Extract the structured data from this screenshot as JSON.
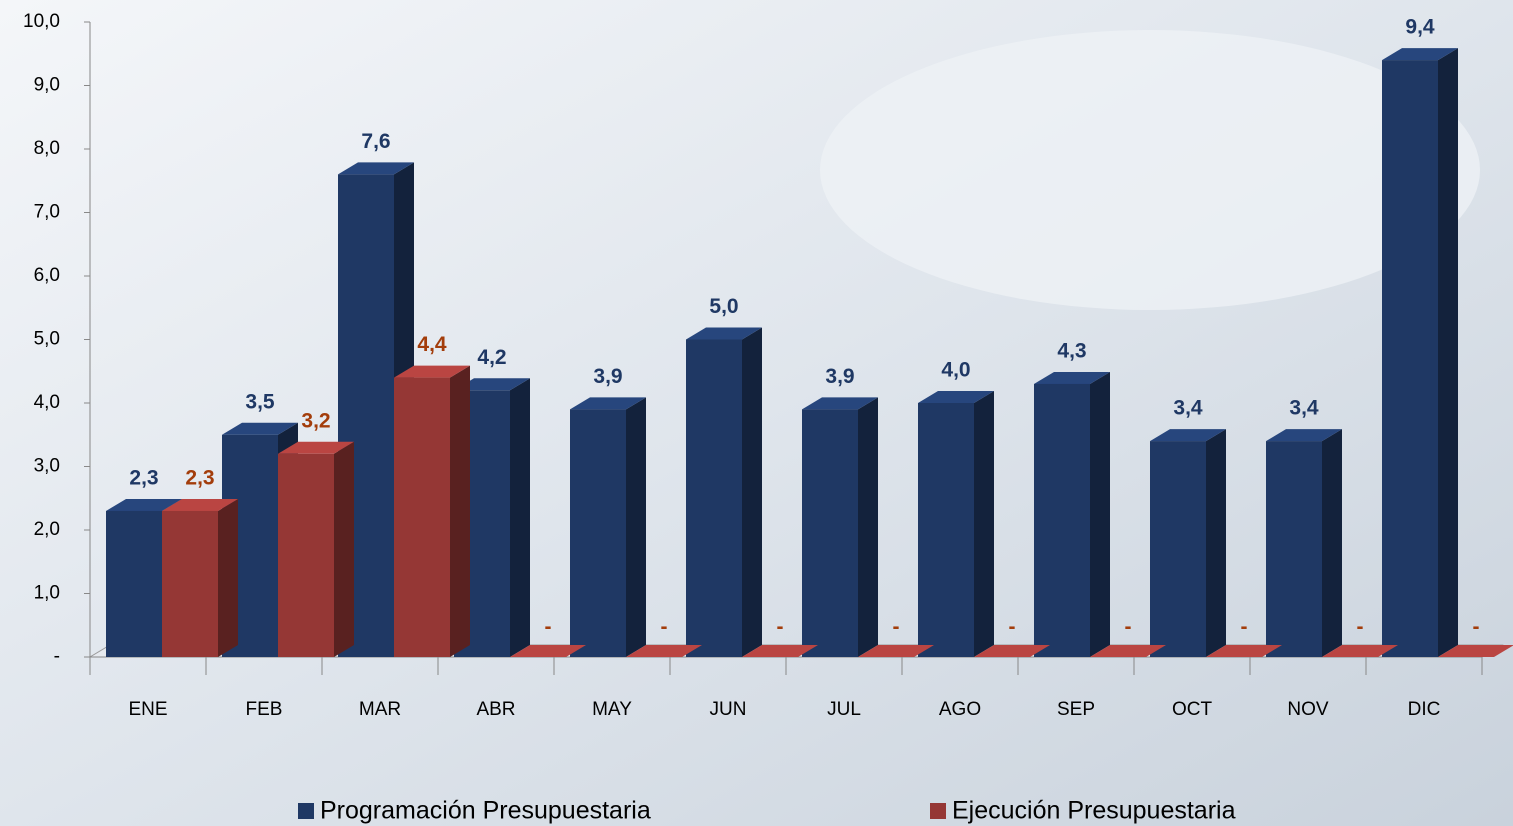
{
  "chart_data": {
    "type": "bar3d",
    "categories": [
      "ENE",
      "FEB",
      "MAR",
      "ABR",
      "MAY",
      "JUN",
      "JUL",
      "AGO",
      "SEP",
      "OCT",
      "NOV",
      "DIC"
    ],
    "series": [
      {
        "name": "Programación Presupuestaria",
        "color": "#1f3864",
        "values": [
          2.3,
          3.5,
          7.6,
          4.2,
          3.9,
          5.0,
          3.9,
          4.0,
          4.3,
          3.4,
          3.4,
          9.4
        ],
        "value_labels": [
          "2,3",
          "3,5",
          "7,6",
          "4,2",
          "3,9",
          "5,0",
          "3,9",
          "4,0",
          "4,3",
          "3,4",
          "3,4",
          "9,4"
        ]
      },
      {
        "name": "Ejecución Presupuestaria",
        "color": "#953735",
        "values": [
          2.3,
          3.2,
          4.4,
          0,
          0,
          0,
          0,
          0,
          0,
          0,
          0,
          0
        ],
        "value_labels": [
          "2,3",
          "3,2",
          "4,4",
          "-",
          "-",
          "-",
          "-",
          "-",
          "-",
          "-",
          "-",
          "-"
        ]
      }
    ],
    "ylim": [
      0,
      10
    ],
    "yticks": [
      {
        "value": 0,
        "label": "-"
      },
      {
        "value": 1,
        "label": "1,0"
      },
      {
        "value": 2,
        "label": "2,0"
      },
      {
        "value": 3,
        "label": "3,0"
      },
      {
        "value": 4,
        "label": "4,0"
      },
      {
        "value": 5,
        "label": "5,0"
      },
      {
        "value": 6,
        "label": "6,0"
      },
      {
        "value": 7,
        "label": "7,0"
      },
      {
        "value": 8,
        "label": "8,0"
      },
      {
        "value": 9,
        "label": "9,0"
      },
      {
        "value": 10,
        "label": "10,0"
      }
    ]
  }
}
